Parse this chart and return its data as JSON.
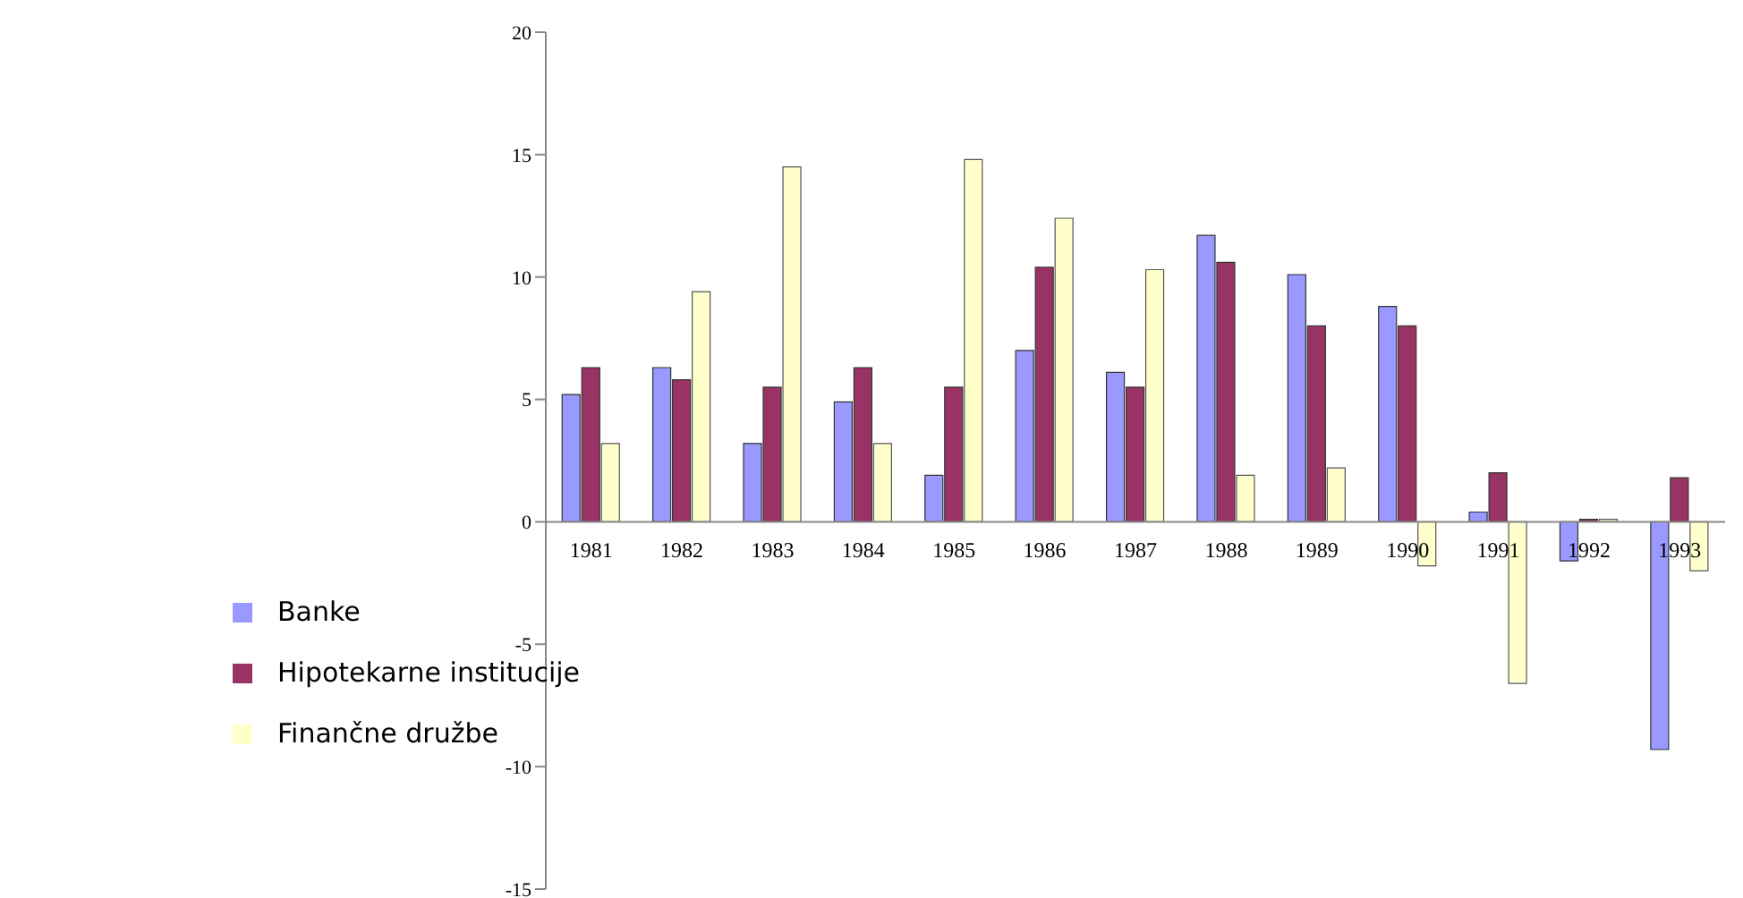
{
  "chart_data": {
    "type": "bar",
    "categories": [
      "1981",
      "1982",
      "1983",
      "1984",
      "1985",
      "1986",
      "1987",
      "1988",
      "1989",
      "1990",
      "1991",
      "1992",
      "1993"
    ],
    "series": [
      {
        "name": "Banke",
        "color": "#9999ff",
        "values": [
          5.2,
          6.3,
          3.2,
          4.9,
          1.9,
          7.0,
          6.1,
          11.7,
          10.1,
          8.8,
          0.4,
          -1.6,
          -9.3
        ]
      },
      {
        "name": "Hipotekarne institucije",
        "color": "#993366",
        "values": [
          6.3,
          5.8,
          5.5,
          6.3,
          5.5,
          10.4,
          5.5,
          10.6,
          8.0,
          8.0,
          2.0,
          0.1,
          1.8
        ]
      },
      {
        "name": "Finančne družbe",
        "color": "#ffffcc",
        "values": [
          3.2,
          9.4,
          14.5,
          3.2,
          14.8,
          12.4,
          10.3,
          1.9,
          2.2,
          -1.8,
          -6.6,
          0.1,
          -2.0
        ]
      }
    ],
    "ylim": [
      -15,
      20
    ],
    "yticks": [
      -15,
      -10,
      -5,
      0,
      5,
      10,
      15,
      20
    ],
    "grid": false,
    "legend": "bottom left"
  }
}
